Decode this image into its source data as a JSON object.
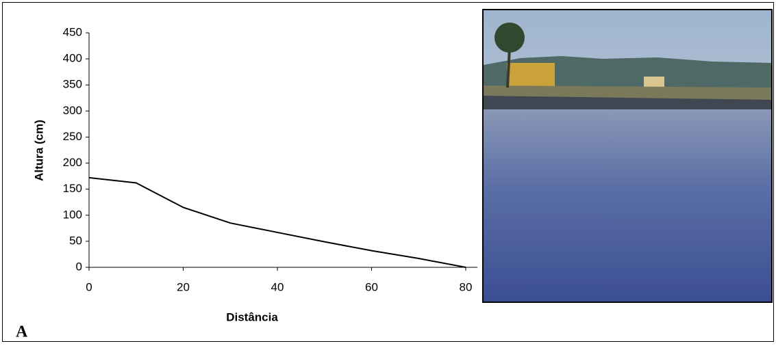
{
  "chart_data": {
    "type": "line",
    "x_label": "Distância",
    "y_label": "Altura (cm)",
    "panel_label": "A",
    "series": [
      {
        "x": [
          0,
          10,
          20,
          30,
          40,
          50,
          60,
          70,
          80
        ],
        "values": [
          172,
          162,
          115,
          85,
          67,
          49,
          32,
          17,
          0
        ],
        "color": "#000000"
      }
    ],
    "xlim": [
      0,
      80
    ],
    "ylim": [
      0,
      450
    ],
    "xticks": [
      0,
      20,
      40,
      60,
      80
    ],
    "yticks": [
      0,
      50,
      100,
      150,
      200,
      250,
      300,
      350,
      400,
      450
    ]
  }
}
